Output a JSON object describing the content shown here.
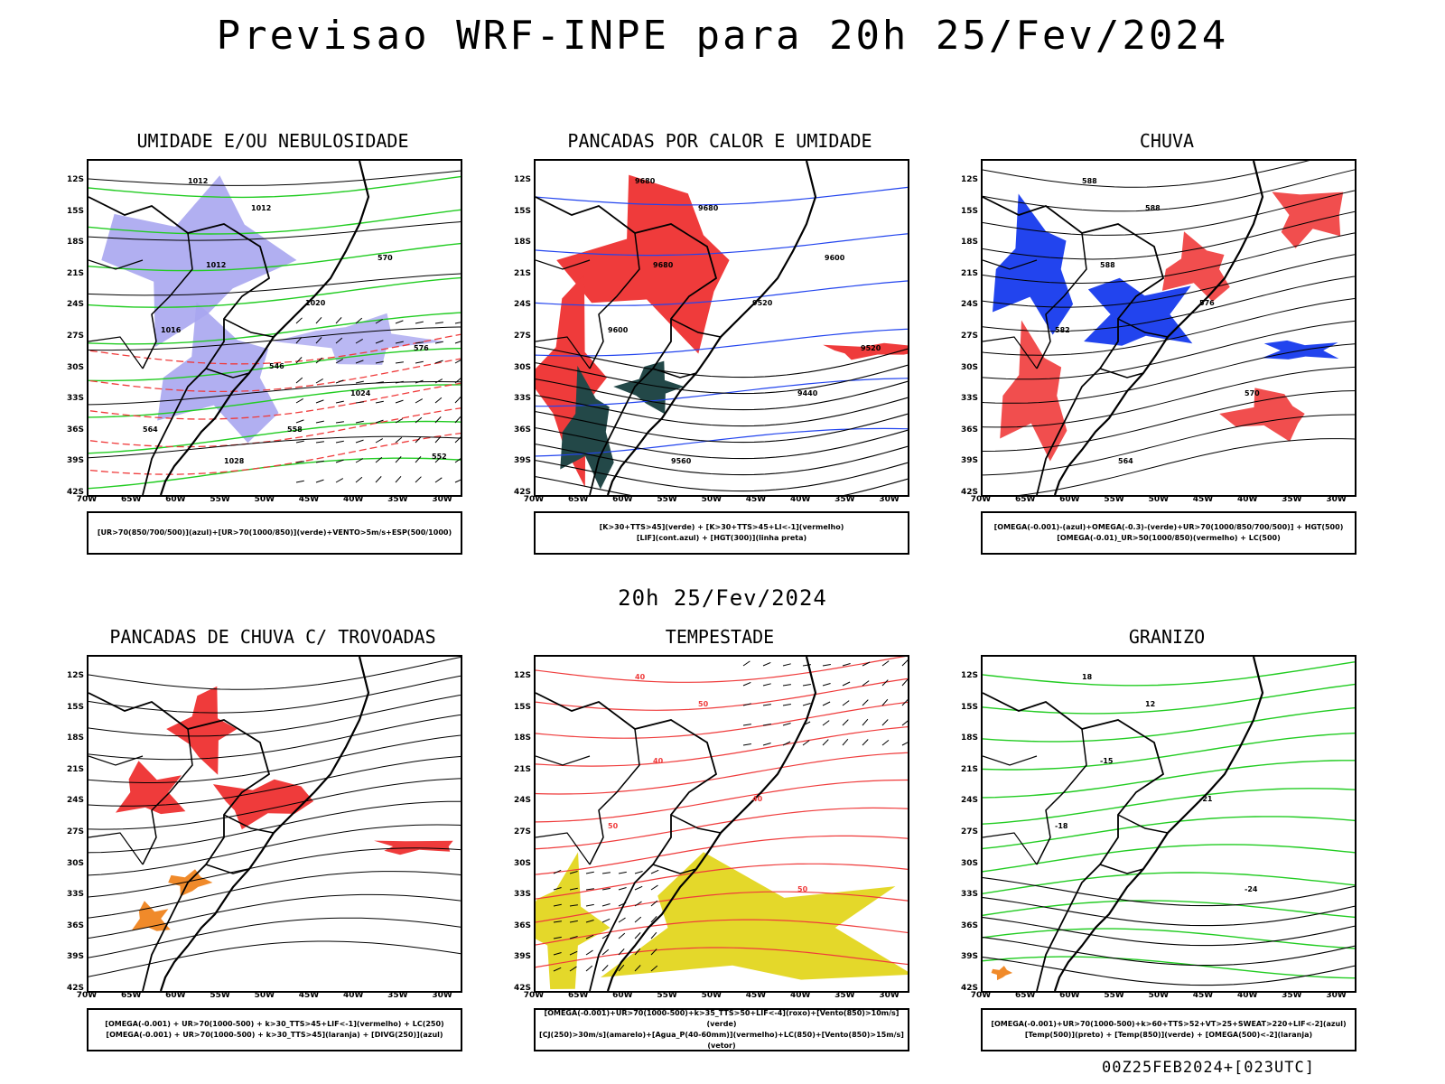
{
  "title": "Previsao WRF-INPE  para 20h 25/Fev/2024",
  "mid_date": "20h 25/Fev/2024",
  "footer": "00Z25FEB2024+[023UTC]",
  "lat_labels": [
    "12S",
    "15S",
    "18S",
    "21S",
    "24S",
    "27S",
    "30S",
    "33S",
    "36S",
    "39S",
    "42S"
  ],
  "lon_labels": [
    "70W",
    "65W",
    "60W",
    "55W",
    "50W",
    "45W",
    "40W",
    "35W",
    "30W"
  ],
  "colors": {
    "red": "#ef3b3b",
    "green": "#22cc22",
    "blue": "#2244ee",
    "lavender": "#a9a6f0",
    "darkteal": "#234848",
    "yellow": "#e4d82a",
    "orange": "#f08a2a"
  },
  "panels": [
    {
      "title": "UMIDADE E/OU NEBULOSIDADE",
      "legend": [
        "[UR>70(850/700/500)](azul)+[UR>70(1000/850)](verde)+VENTO>5m/s+ESP(500/1000)"
      ],
      "contour_labels": [
        "1012",
        "1012",
        "1012",
        "1016",
        "1020",
        "1024",
        "1028",
        "576",
        "570",
        "564",
        "558",
        "552",
        "546"
      ]
    },
    {
      "title": "PANCADAS POR CALOR E UMIDADE",
      "legend": [
        "[K>30+TTS>45](verde) + [K>30+TTS>45+LI<-1](vermelho)",
        "[LIF](cont.azul) + [HGT(300)](linha preta)"
      ],
      "contour_labels": [
        "9680",
        "9680",
        "9680",
        "9600",
        "9520",
        "9440",
        "9560",
        "9520",
        "9600"
      ]
    },
    {
      "title": "CHUVA",
      "legend": [
        "[OMEGA(-0.001)-(azul)+OMEGA(-0.3)-(verde)+UR>70(1000/850/700/500)] + HGT(500)",
        "[OMEGA(-0.01)_UR>50(1000/850)(vermelho) + LC(500)"
      ],
      "contour_labels": [
        "588",
        "588",
        "588",
        "582",
        "576",
        "570",
        "564"
      ]
    },
    {
      "title": "PANCADAS DE CHUVA C/ TROVOADAS",
      "legend": [
        "[OMEGA(-0.001) + UR>70(1000-500) + k>30_TTS>45+LIF<-1](vermelho) + LC(250)",
        "[OMEGA(-0.001) + UR>70(1000-500) + k>30_TTS>45](laranja) + [DIVG(250)](azul)"
      ],
      "contour_labels": []
    },
    {
      "title": "TEMPESTADE",
      "legend": [
        "[OMEGA(-0.001)+UR>70(1000-500)+k>35_TTS>50+LIF<-4](roxo)+[Vento(850)>10m/s](verde)",
        "[CJ(250)>30m/s](amarelo)+[Agua_P(40-60mm)](vermelho)+LC(850)+[Vento(850)>15m/s](vetor)"
      ],
      "contour_labels": [
        "40",
        "50",
        "40",
        "50",
        "40",
        "50"
      ]
    },
    {
      "title": "GRANIZO",
      "legend": [
        "[OMEGA(-0.001)+UR>70(1000-500)+k>60+TTS>52+VT>25+SWEAT>220+LIF<-2](azul)",
        "[Temp(500)](preto) + [Temp(850)](verde) + [OMEGA(500)<-2](laranja)"
      ],
      "contour_labels": [
        "18",
        "12",
        "-15",
        "-18",
        "-21",
        "-24"
      ]
    }
  ]
}
